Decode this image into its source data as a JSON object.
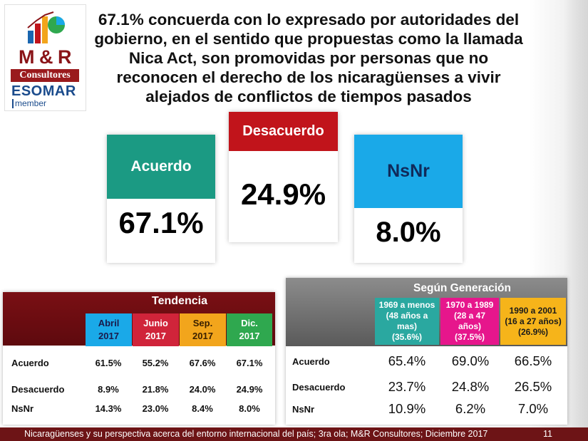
{
  "logo": {
    "name": "M & R",
    "sub": "Consultores",
    "esomar": "ESOMAR",
    "member": "member"
  },
  "headline": "67.1% concuerda con lo expresado por autoridades del gobierno, en el sentido que propuestas como la llamada Nica Act, son promovidas por personas que no reconocen el derecho de los nicaragüenses a vivir alejados de conflictos de tiempos pasados",
  "cards": {
    "acuerdo": {
      "label": "Acuerdo",
      "value": "67.1%",
      "color": "#1b9a83"
    },
    "desacuerdo": {
      "label": "Desacuerdo",
      "value": "24.9%",
      "color": "#c1141b"
    },
    "nsnr": {
      "label": "NsNr",
      "value": "8.0%",
      "color": "#1aa9e8"
    }
  },
  "tendencia": {
    "title": "Tendencia",
    "columns": [
      {
        "line1": "Abril",
        "line2": "2017",
        "color": "#1aa9e8",
        "text_color": "#1a1a4a"
      },
      {
        "line1": "Junio",
        "line2": "2017",
        "color": "#d0243a",
        "text_color": "#ffffff"
      },
      {
        "line1": "Sep.",
        "line2": "2017",
        "color": "#f2a51c",
        "text_color": "#3a2000"
      },
      {
        "line1": "Dic.",
        "line2": "2017",
        "color": "#2fa84f",
        "text_color": "#ffffff"
      }
    ],
    "rows": [
      {
        "label": "Acuerdo",
        "values": [
          "61.5%",
          "55.2%",
          "67.6%",
          "67.1%"
        ]
      },
      {
        "label": "Desacuerdo",
        "values": [
          "8.9%",
          "21.8%",
          "24.0%",
          "24.9%"
        ]
      },
      {
        "label": "NsNr",
        "values": [
          "14.3%",
          "23.0%",
          "8.4%",
          "8.0%"
        ]
      }
    ]
  },
  "generacion": {
    "title": "Según Generación",
    "columns": [
      {
        "lines": [
          "1969 a menos",
          "(48 años a",
          "mas)",
          "(35.6%)"
        ],
        "color": "#2aa8a0",
        "text_color": "#ffffff"
      },
      {
        "lines": [
          "1970 a 1989",
          "(28 a 47",
          "años)",
          "(37.5%)"
        ],
        "color": "#e6168c",
        "text_color": "#ffffff"
      },
      {
        "lines": [
          "1990 a 2001",
          "(16 a 27 años)",
          "(26.9%)"
        ],
        "color": "#f6b41a",
        "text_color": "#1a1a1a"
      }
    ],
    "rows": [
      {
        "label": "Acuerdo",
        "values": [
          "65.4%",
          "69.0%",
          "66.5%"
        ]
      },
      {
        "label": "Desacuerdo",
        "values": [
          "23.7%",
          "24.8%",
          "26.5%"
        ]
      },
      {
        "label": "NsNr",
        "values": [
          "10.9%",
          "6.2%",
          "7.0%"
        ]
      }
    ]
  },
  "footer": {
    "text": "Nicaragüenses y su perspectiva acerca del entorno internacional del país; 3ra ola; M&R Consultores; Diciembre 2017",
    "page": "11"
  }
}
